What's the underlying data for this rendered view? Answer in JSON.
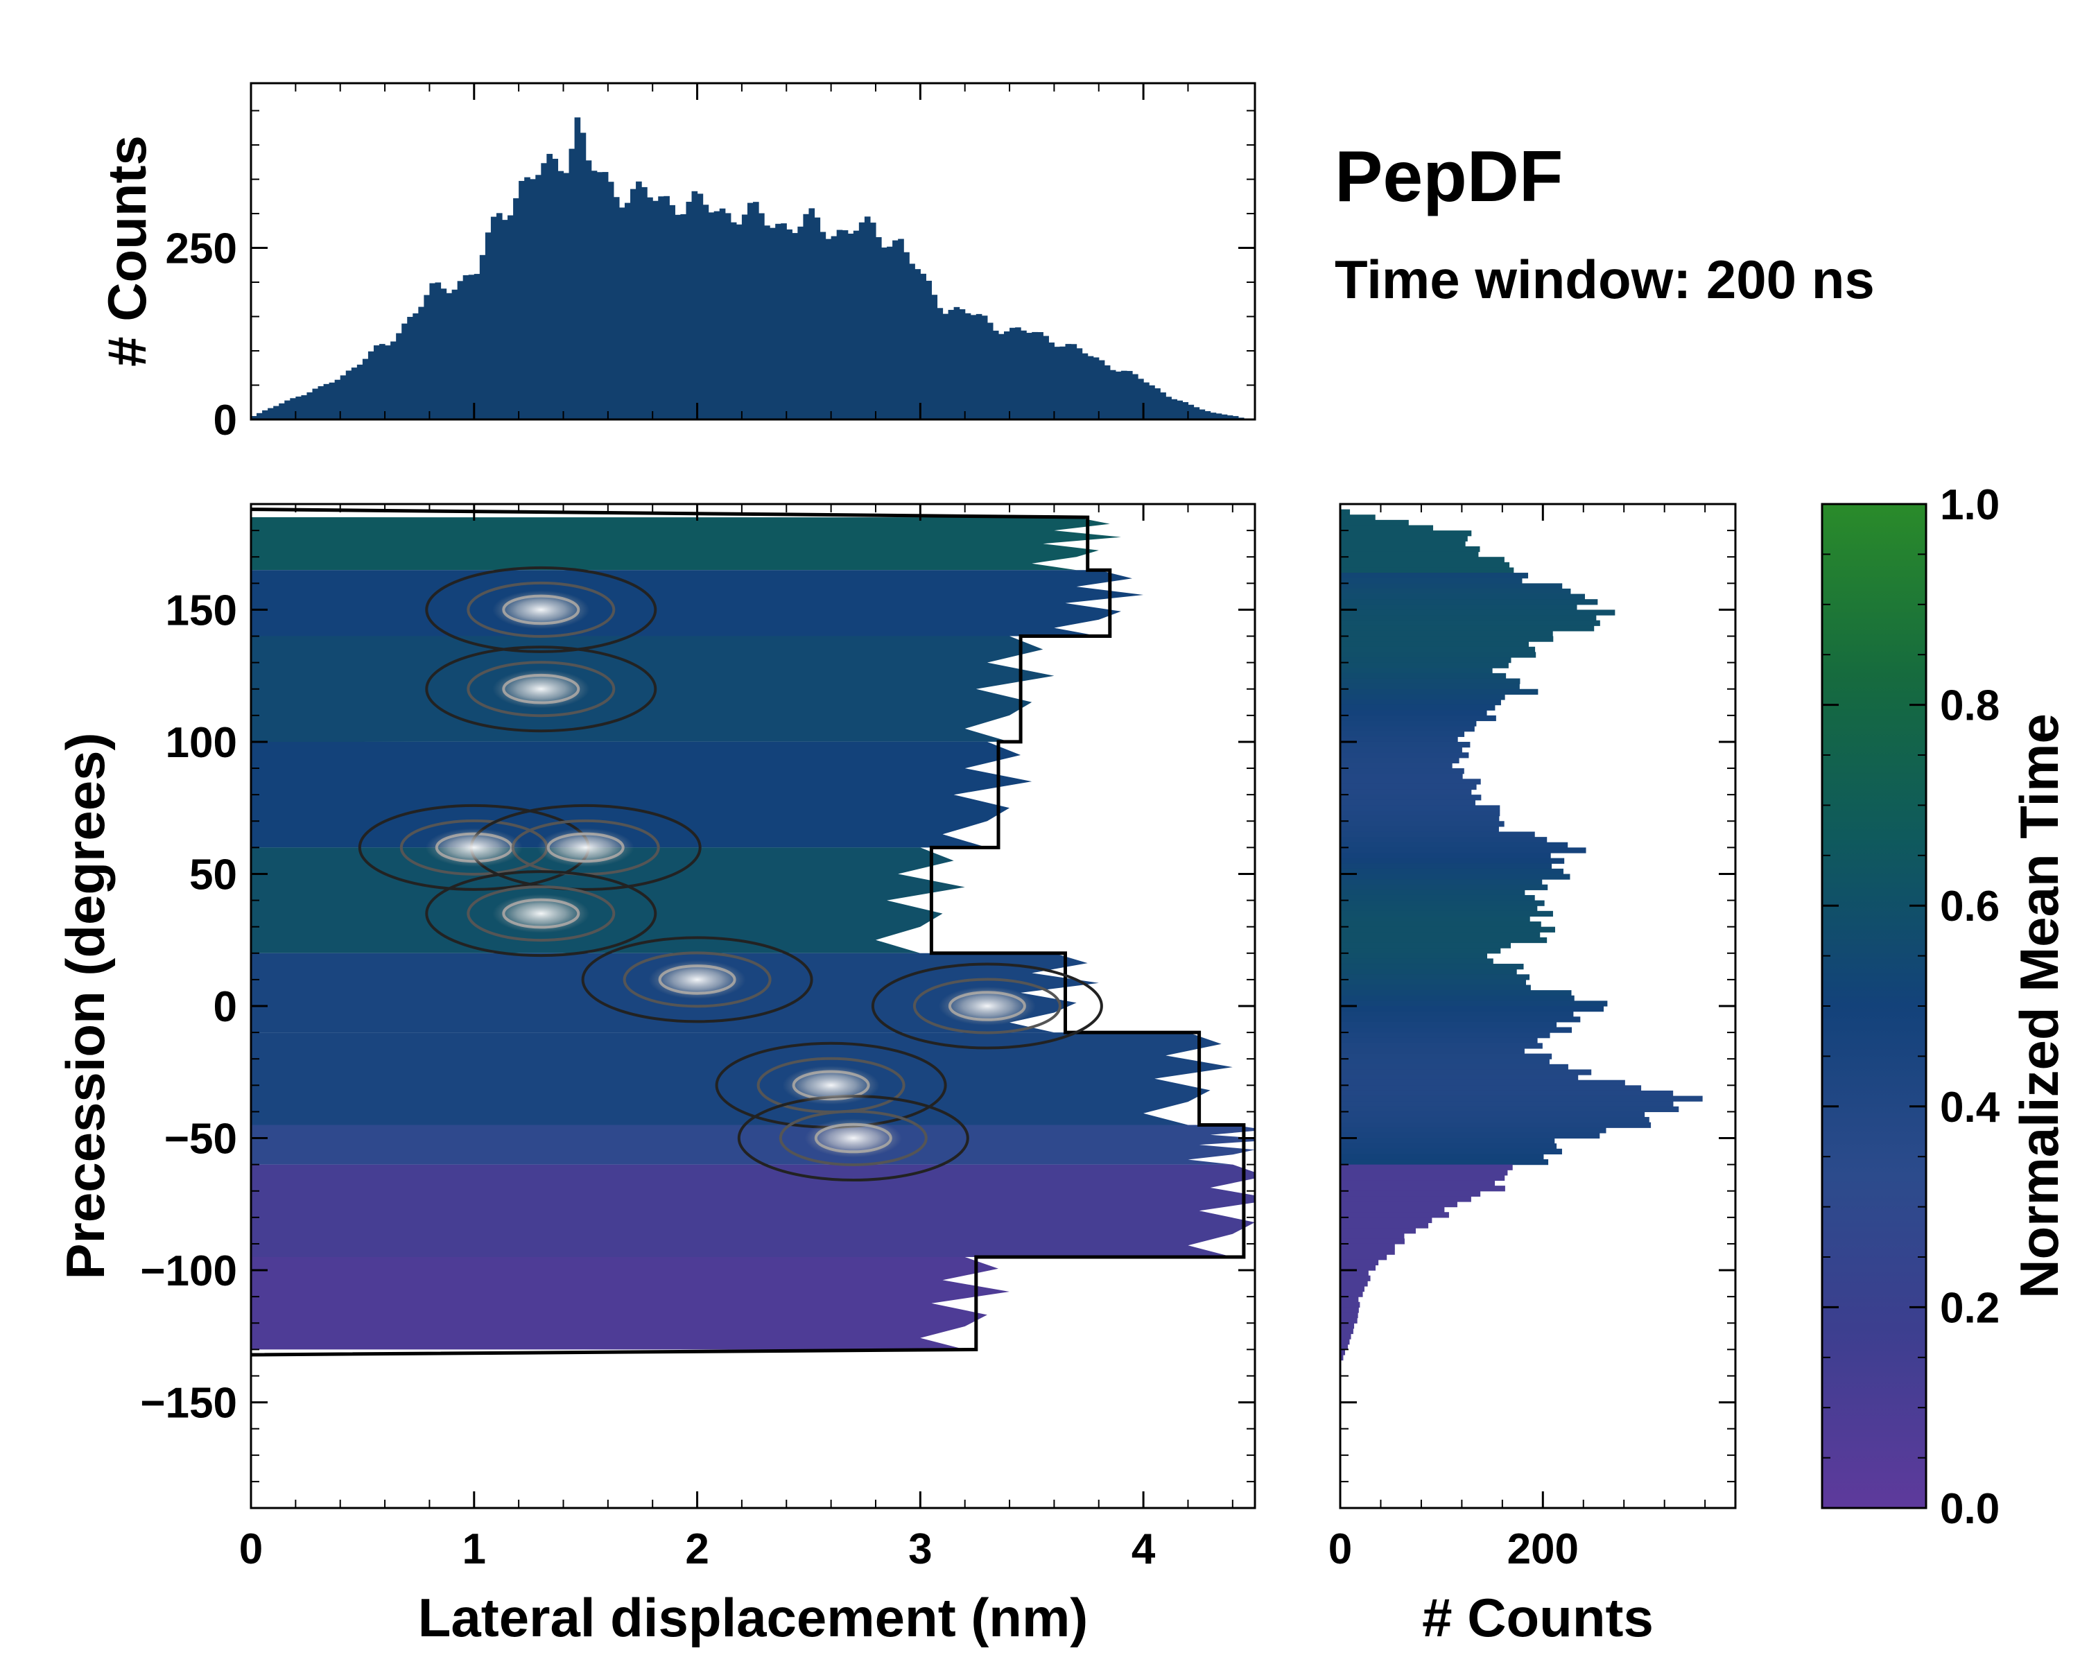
{
  "title": "PepDF",
  "subtitle": "Time window: 200 ns",
  "colors": {
    "cmap": [
      "#5e3a9c",
      "#3c3f8f",
      "#2c4b8c",
      "#13427a",
      "#0f5a5c",
      "#166b3e",
      "#2a8b2a"
    ],
    "hist_fill": "#12406e",
    "contour_outer": "#000000"
  },
  "chart_data": [
    {
      "id": "joint",
      "type": "heatmap",
      "xlabel": "Lateral displacement (nm)",
      "ylabel": "Precession (degrees)",
      "xlim": [
        0,
        4.5
      ],
      "ylim": [
        -190,
        190
      ],
      "xticks": [
        0,
        1,
        2,
        3,
        4
      ],
      "yticks": [
        150,
        100,
        50,
        0,
        -50,
        -100,
        -150
      ],
      "xtick_labels": [
        "0",
        "1",
        "2",
        "3",
        "4"
      ],
      "ytick_labels": [
        "150",
        "100",
        "50",
        "0",
        "−50",
        "−100",
        "−150"
      ],
      "color_bands": [
        {
          "ymin": 165,
          "ymax": 185,
          "xmax": 3.7,
          "value": 0.65
        },
        {
          "ymin": 140,
          "ymax": 165,
          "xmax": 3.8,
          "value": 0.5
        },
        {
          "ymin": 100,
          "ymax": 140,
          "xmax": 3.4,
          "value": 0.55
        },
        {
          "ymin": 60,
          "ymax": 100,
          "xmax": 3.3,
          "value": 0.5
        },
        {
          "ymin": 20,
          "ymax": 60,
          "xmax": 3.0,
          "value": 0.6
        },
        {
          "ymin": -10,
          "ymax": 20,
          "xmax": 3.6,
          "value": 0.45
        },
        {
          "ymin": -45,
          "ymax": -10,
          "xmax": 4.2,
          "value": 0.45
        },
        {
          "ymin": -60,
          "ymax": -45,
          "xmax": 4.4,
          "value": 0.3
        },
        {
          "ymin": -95,
          "ymax": -60,
          "xmax": 4.4,
          "value": 0.12
        },
        {
          "ymin": -130,
          "ymax": -95,
          "xmax": 3.2,
          "value": 0.08
        }
      ],
      "hotspots": [
        {
          "x": 1.3,
          "y": 150
        },
        {
          "x": 1.3,
          "y": 120
        },
        {
          "x": 1.0,
          "y": 60
        },
        {
          "x": 1.5,
          "y": 60
        },
        {
          "x": 1.3,
          "y": 35
        },
        {
          "x": 2.0,
          "y": 10
        },
        {
          "x": 2.6,
          "y": -30
        },
        {
          "x": 2.7,
          "y": -50
        },
        {
          "x": 3.3,
          "y": 0
        }
      ]
    },
    {
      "id": "top-hist",
      "type": "bar",
      "orientation": "vertical",
      "ylabel": "# Counts",
      "xlim": [
        0,
        4.5
      ],
      "ylim": [
        0,
        490
      ],
      "yticks": [
        0,
        250
      ],
      "ytick_labels": [
        "0",
        "250"
      ],
      "bin_width": 0.025,
      "x": [
        0.0,
        0.1,
        0.2,
        0.3,
        0.4,
        0.5,
        0.6,
        0.7,
        0.8,
        0.9,
        1.0,
        1.1,
        1.2,
        1.3,
        1.4,
        1.45,
        1.5,
        1.6,
        1.7,
        1.8,
        1.9,
        2.0,
        2.1,
        2.2,
        2.3,
        2.4,
        2.5,
        2.6,
        2.7,
        2.8,
        2.9,
        3.0,
        3.1,
        3.2,
        3.3,
        3.4,
        3.5,
        3.6,
        3.7,
        3.8,
        3.9,
        4.0,
        4.1,
        4.2,
        4.3,
        4.4,
        4.45
      ],
      "values": [
        5,
        20,
        35,
        45,
        65,
        90,
        110,
        150,
        185,
        200,
        215,
        300,
        340,
        360,
        390,
        430,
        370,
        340,
        330,
        320,
        320,
        310,
        305,
        300,
        290,
        285,
        285,
        275,
        280,
        270,
        260,
        200,
        165,
        155,
        140,
        130,
        125,
        115,
        100,
        85,
        70,
        55,
        35,
        20,
        10,
        5,
        0
      ]
    },
    {
      "id": "right-hist",
      "type": "bar",
      "orientation": "horizontal",
      "xlabel": "# Counts",
      "xlim": [
        0,
        390
      ],
      "ylim": [
        -190,
        190
      ],
      "xticks": [
        0,
        200
      ],
      "xtick_labels": [
        "0",
        "200"
      ],
      "bin_width": 2,
      "y": [
        188,
        180,
        170,
        160,
        150,
        140,
        130,
        120,
        110,
        100,
        90,
        80,
        70,
        60,
        50,
        40,
        30,
        20,
        10,
        0,
        -10,
        -20,
        -30,
        -36,
        -40,
        -50,
        -60,
        -70,
        -80,
        -90,
        -100,
        -110,
        -120,
        -130,
        -135
      ],
      "values": [
        10,
        120,
        150,
        210,
        270,
        210,
        160,
        180,
        140,
        120,
        120,
        140,
        160,
        230,
        210,
        190,
        210,
        150,
        190,
        260,
        200,
        200,
        300,
        350,
        320,
        230,
        180,
        140,
        90,
        55,
        30,
        20,
        15,
        5,
        0
      ]
    },
    {
      "id": "colorbar",
      "type": "heatmap",
      "ylabel": "Normalized Mean Time",
      "ylim": [
        0.0,
        1.0
      ],
      "ticks": [
        0.0,
        0.2,
        0.4,
        0.6,
        0.8,
        1.0
      ],
      "tick_labels": [
        "0.0",
        "0.2",
        "0.4",
        "0.6",
        "0.8",
        "1.0"
      ]
    }
  ]
}
